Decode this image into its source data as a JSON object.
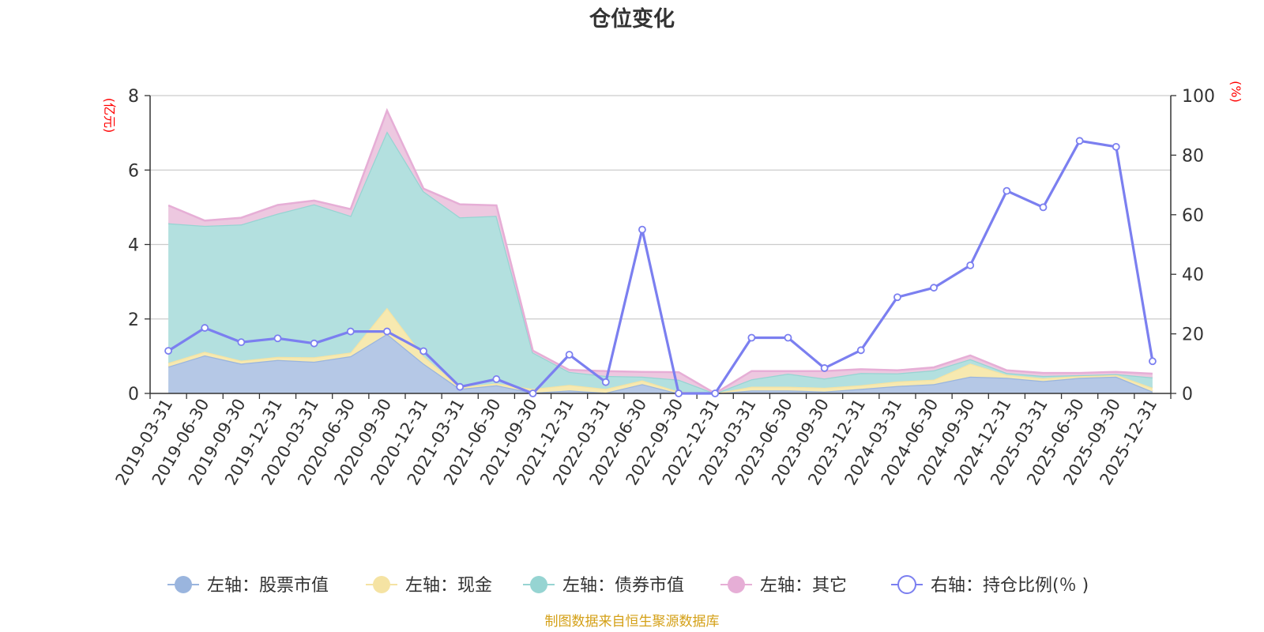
{
  "chart_data": {
    "type": "area",
    "title": "仓位变化",
    "left_unit": "(亿元)",
    "right_unit": "(%)",
    "left_ylim": [
      0,
      8
    ],
    "left_ticks": [
      "0",
      "2",
      "4",
      "6",
      "8"
    ],
    "right_ylim": [
      0,
      100
    ],
    "right_ticks": [
      "0",
      "20",
      "40",
      "60",
      "80",
      "100"
    ],
    "grid": true,
    "legend_position": "bottom",
    "categories": [
      "2019-03-31",
      "2019-06-30",
      "2019-09-30",
      "2019-12-31",
      "2020-03-31",
      "2020-06-30",
      "2020-09-30",
      "2020-12-31",
      "2021-03-31",
      "2021-06-30",
      "2021-09-30",
      "2021-12-31",
      "2022-03-31",
      "2022-06-30",
      "2022-09-30",
      "2022-12-31",
      "2023-03-31",
      "2023-06-30",
      "2023-09-30",
      "2023-12-31",
      "2024-03-31",
      "2024-06-30",
      "2024-09-30",
      "2024-12-31",
      "2025-03-31",
      "2025-06-30",
      "2025-09-30",
      "2025-12-31"
    ],
    "series": [
      {
        "name": "左轴：股票市值",
        "axis": "left",
        "stacked": true,
        "color": "#9ab5de",
        "fill": "#b5c8e6",
        "values": [
          0.72,
          1.02,
          0.8,
          0.9,
          0.85,
          1.0,
          1.6,
          0.8,
          0.12,
          0.22,
          0.02,
          0.08,
          0.02,
          0.25,
          0.0,
          0.0,
          0.08,
          0.08,
          0.05,
          0.12,
          0.2,
          0.25,
          0.45,
          0.42,
          0.33,
          0.42,
          0.45,
          0.05
        ]
      },
      {
        "name": "左轴：现金",
        "axis": "left",
        "stacked": true,
        "color": "#f5e3a3",
        "fill": "#f7e9b0",
        "values": [
          0.1,
          0.1,
          0.08,
          0.08,
          0.12,
          0.1,
          0.7,
          0.2,
          0.05,
          0.05,
          0.1,
          0.15,
          0.1,
          0.1,
          0.05,
          0.0,
          0.1,
          0.1,
          0.1,
          0.1,
          0.12,
          0.12,
          0.35,
          0.08,
          0.08,
          0.05,
          0.05,
          0.1
        ]
      },
      {
        "name": "左轴：债券市值",
        "axis": "left",
        "stacked": true,
        "color": "#96d4d2",
        "fill": "#b3e0df",
        "values": [
          3.75,
          3.38,
          3.66,
          3.85,
          4.11,
          3.67,
          4.74,
          4.43,
          4.56,
          4.5,
          0.98,
          0.35,
          0.35,
          0.1,
          0.32,
          0.0,
          0.2,
          0.35,
          0.25,
          0.33,
          0.22,
          0.25,
          0.12,
          0.05,
          0.06,
          0.02,
          0.02,
          0.28
        ]
      },
      {
        "name": "左轴：其它",
        "axis": "left",
        "stacked": true,
        "color": "#e6aed6",
        "fill": "#edc8e0",
        "values": [
          0.48,
          0.14,
          0.18,
          0.23,
          0.1,
          0.18,
          0.56,
          0.07,
          0.35,
          0.28,
          0.05,
          0.05,
          0.13,
          0.13,
          0.2,
          0.0,
          0.22,
          0.07,
          0.2,
          0.1,
          0.08,
          0.08,
          0.1,
          0.07,
          0.08,
          0.06,
          0.06,
          0.1
        ]
      },
      {
        "name": "右轴：持仓比例(％)",
        "axis": "right",
        "stacked": false,
        "color": "#7b7ff0",
        "values": [
          14.3,
          22.0,
          17.2,
          18.5,
          16.8,
          20.8,
          20.8,
          14.2,
          2.2,
          4.8,
          0.0,
          13.0,
          3.8,
          55.0,
          0.0,
          0.0,
          18.7,
          18.7,
          8.5,
          14.5,
          32.3,
          35.5,
          43.0,
          68.0,
          62.5,
          84.8,
          82.8,
          10.8
        ]
      }
    ]
  },
  "legend": [
    {
      "label": "左轴：股票市值",
      "icon": "filled-circle",
      "color": "#9ab5de"
    },
    {
      "label": "左轴：现金",
      "icon": "filled-circle",
      "color": "#f5e3a3"
    },
    {
      "label": "左轴：债券市值",
      "icon": "filled-circle",
      "color": "#96d4d2"
    },
    {
      "label": "左轴：其它",
      "icon": "filled-circle",
      "color": "#e6aed6"
    },
    {
      "label": "右轴：持仓比例(％ )",
      "icon": "hollow-circle",
      "color": "#7b7ff0"
    }
  ],
  "footer": {
    "text": "制图数据来自恒生聚源数据库",
    "color": "#d4a017"
  }
}
